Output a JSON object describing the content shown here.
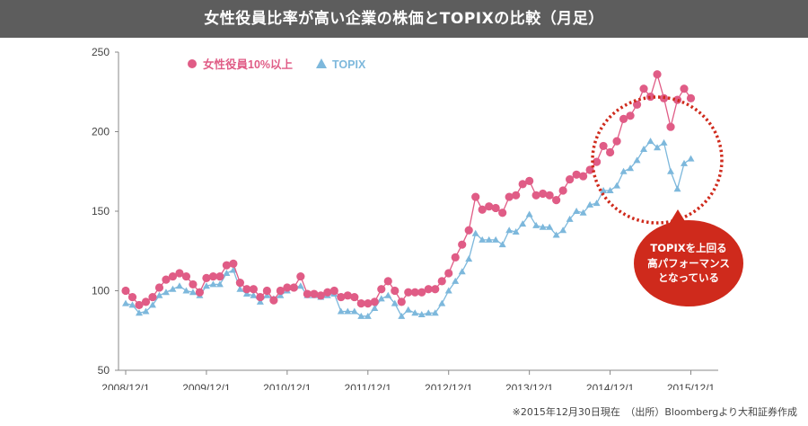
{
  "title": "女性役員比率が高い企業の株価とTOPIXの比較（月足）",
  "source_note": "※2015年12月30日現在　（出所）Bloombergより大和証券作成",
  "callout_text": "TOPIXを上回る\n高パフォーマンス\nとなっている",
  "colors": {
    "series_women": "#e05c86",
    "series_topix": "#7db8dc",
    "callout": "#cf2a1c",
    "highlight_ring": "#cf2a1c",
    "title_bar": "#5d5d5d"
  },
  "chart_data": {
    "type": "line",
    "title": "女性役員比率が高い企業の株価とTOPIXの比較（月足）",
    "xlabel": "",
    "ylabel": "",
    "ylim": [
      50,
      250
    ],
    "yticks": [
      50,
      100,
      150,
      200,
      250
    ],
    "xlim": [
      "2008-12",
      "2016-03"
    ],
    "xtick_labels": [
      "2008/12/1",
      "2009/12/1",
      "2010/12/1",
      "2011/12/1",
      "2012/12/1",
      "2013/12/1",
      "2014/12/1",
      "2015/12/1"
    ],
    "grid": false,
    "legend_position": "top-left",
    "x": [
      "2008-12",
      "2009-01",
      "2009-02",
      "2009-03",
      "2009-04",
      "2009-05",
      "2009-06",
      "2009-07",
      "2009-08",
      "2009-09",
      "2009-10",
      "2009-11",
      "2009-12",
      "2010-01",
      "2010-02",
      "2010-03",
      "2010-04",
      "2010-05",
      "2010-06",
      "2010-07",
      "2010-08",
      "2010-09",
      "2010-10",
      "2010-11",
      "2010-12",
      "2011-01",
      "2011-02",
      "2011-03",
      "2011-04",
      "2011-05",
      "2011-06",
      "2011-07",
      "2011-08",
      "2011-09",
      "2011-10",
      "2011-11",
      "2011-12",
      "2012-01",
      "2012-02",
      "2012-03",
      "2012-04",
      "2012-05",
      "2012-06",
      "2012-07",
      "2012-08",
      "2012-09",
      "2012-10",
      "2012-11",
      "2012-12",
      "2013-01",
      "2013-02",
      "2013-03",
      "2013-04",
      "2013-05",
      "2013-06",
      "2013-07",
      "2013-08",
      "2013-09",
      "2013-10",
      "2013-11",
      "2013-12",
      "2014-01",
      "2014-02",
      "2014-03",
      "2014-04",
      "2014-05",
      "2014-06",
      "2014-07",
      "2014-08",
      "2014-09",
      "2014-10",
      "2014-11",
      "2014-12",
      "2015-01",
      "2015-02",
      "2015-03",
      "2015-04",
      "2015-05",
      "2015-06",
      "2015-07",
      "2015-08",
      "2015-09",
      "2015-10",
      "2015-11",
      "2015-12"
    ],
    "series": [
      {
        "name": "女性役員10%以上",
        "color": "#e05c86",
        "marker": "circle",
        "values": [
          100,
          96,
          91,
          93,
          96,
          102,
          107,
          109,
          111,
          109,
          104,
          99,
          108,
          109,
          109,
          116,
          117,
          105,
          101,
          101,
          96,
          100,
          94,
          100,
          102,
          102,
          109,
          98,
          98,
          97,
          99,
          100,
          96,
          97,
          96,
          92,
          92,
          93,
          101,
          106,
          100,
          93,
          99,
          99,
          99,
          101,
          101,
          106,
          111,
          121,
          129,
          138,
          159,
          151,
          153,
          152,
          149,
          159,
          160,
          167,
          169,
          160,
          161,
          160,
          157,
          163,
          170,
          173,
          172,
          176,
          181,
          191,
          187,
          194,
          208,
          210,
          217,
          227,
          222,
          236,
          221,
          203,
          220,
          227,
          221
        ]
      },
      {
        "name": "TOPIX",
        "color": "#7db8dc",
        "marker": "triangle",
        "values": [
          92,
          91,
          86,
          87,
          91,
          97,
          99,
          101,
          103,
          100,
          99,
          97,
          103,
          104,
          104,
          111,
          113,
          101,
          98,
          97,
          93,
          97,
          95,
          97,
          100,
          102,
          103,
          97,
          97,
          96,
          97,
          98,
          87,
          87,
          87,
          84,
          84,
          89,
          95,
          97,
          92,
          84,
          88,
          86,
          85,
          86,
          86,
          92,
          100,
          106,
          112,
          120,
          136,
          132,
          132,
          132,
          129,
          138,
          137,
          142,
          148,
          141,
          140,
          140,
          135,
          138,
          145,
          150,
          149,
          154,
          155,
          163,
          163,
          166,
          175,
          177,
          182,
          189,
          194,
          190,
          193,
          175,
          164,
          180,
          183
        ]
      }
    ]
  }
}
